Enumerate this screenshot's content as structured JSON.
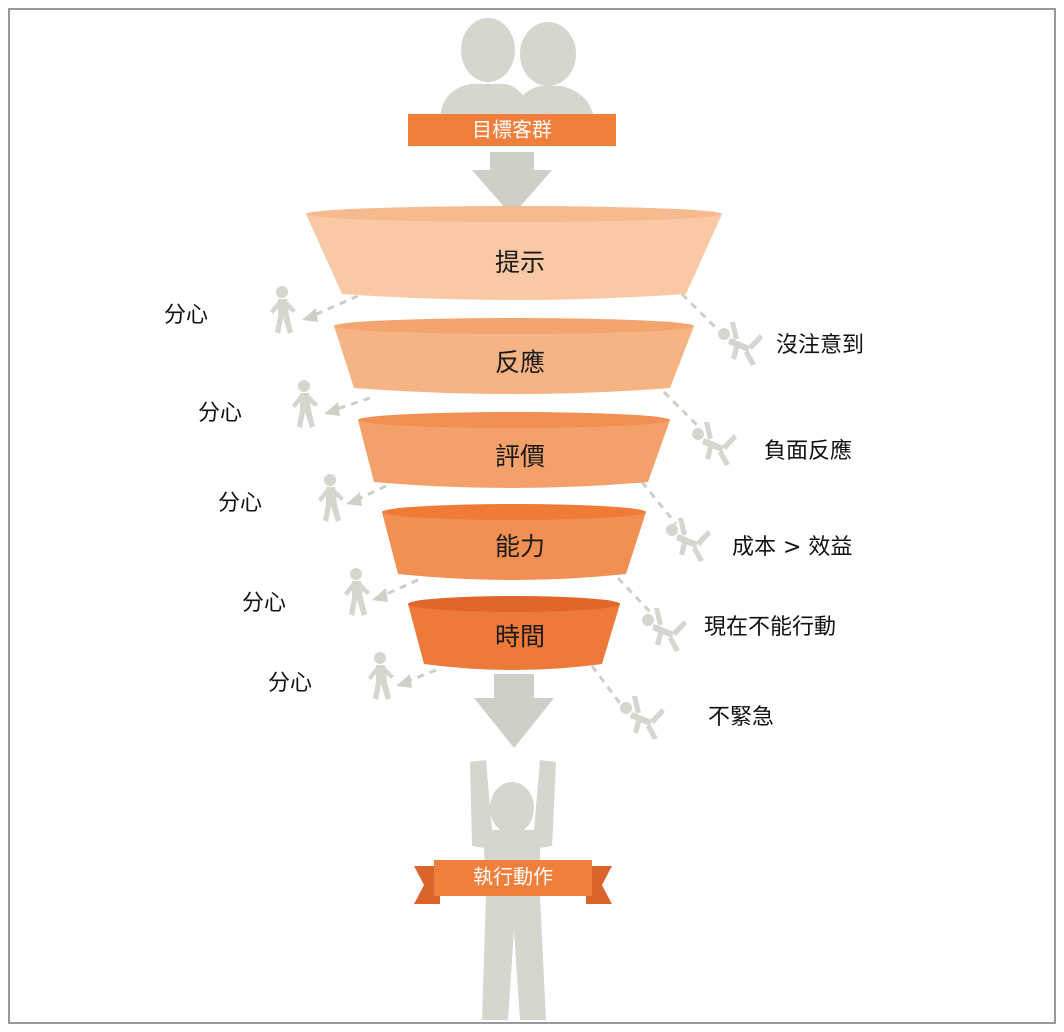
{
  "header": {
    "banner": "目標客群"
  },
  "stages": [
    {
      "label": "提示",
      "color": "#f8c9a4",
      "rim": "#f6ba8e"
    },
    {
      "label": "反應",
      "color": "#f6b484",
      "rim": "#f4a46f"
    },
    {
      "label": "評價",
      "color": "#f4a06a",
      "rim": "#f28f52"
    },
    {
      "label": "能力",
      "color": "#f28f52",
      "rim": "#ef7b37"
    },
    {
      "label": "時間",
      "color": "#ee7a3a",
      "rim": "#e0662a"
    }
  ],
  "left_labels": [
    "分心",
    "分心",
    "分心",
    "分心",
    "分心"
  ],
  "right_labels": [
    "沒注意到",
    "負面反應",
    "成本 > 效益",
    "現在不能行動",
    "不緊急"
  ],
  "footer": {
    "banner": "執行動作"
  },
  "colors": {
    "accent": "#f07f3c",
    "figure": "#d6d6cf",
    "arrow": "#cfcfc8"
  }
}
